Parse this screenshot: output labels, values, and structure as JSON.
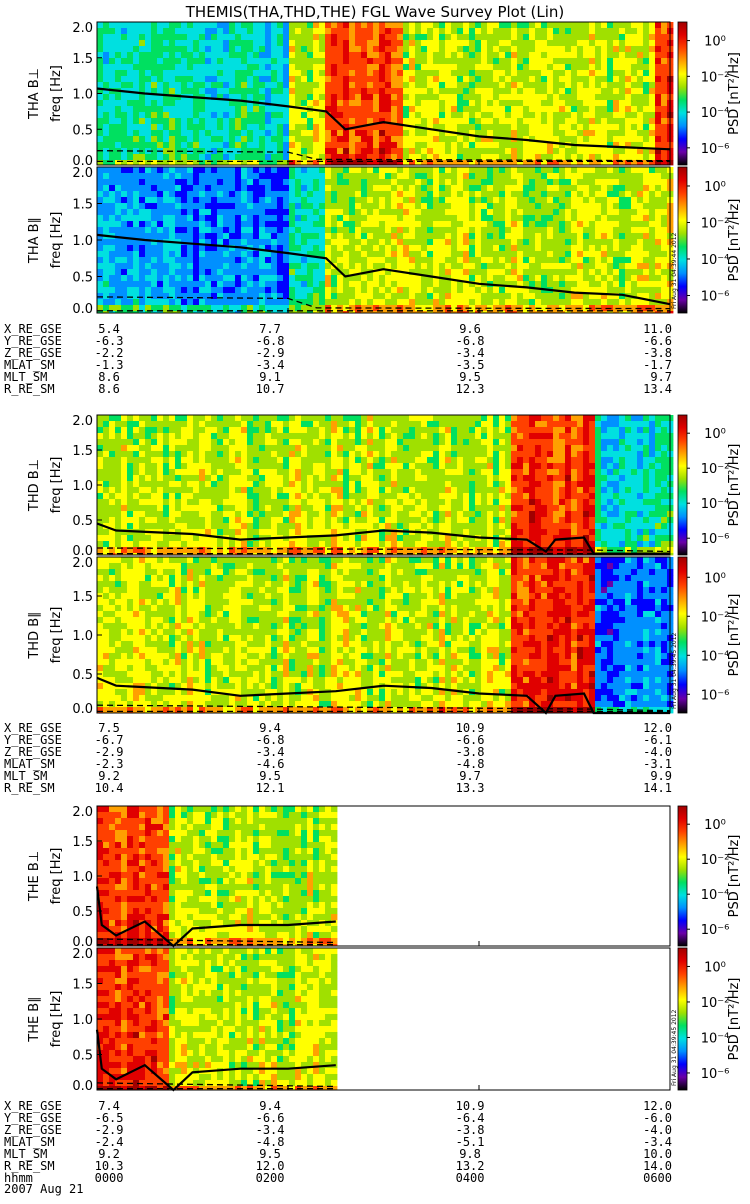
{
  "title": "THEMIS(THA,THD,THE) FGL Wave Survey Plot (Lin)",
  "footer": {
    "label_hhmm": "hhmm",
    "date": "2007 Aug 21"
  },
  "colorbar": {
    "label": "PSD [nT²/Hz]",
    "ticks": [
      "10⁰",
      "10⁻²",
      "10⁻⁴",
      "10⁻⁶"
    ],
    "colors": [
      "#000000",
      "#6a00a8",
      "#0000ff",
      "#0090ff",
      "#00e0e0",
      "#00e060",
      "#a0e000",
      "#ffff00",
      "#ffa000",
      "#ff4000",
      "#e00000",
      "#a00000"
    ]
  },
  "panels": [
    {
      "label": "THA B⊥",
      "ylabel": "freq [Hz]",
      "stamp": "",
      "yticks": [
        "2.0",
        "1.5",
        "1.0",
        "0.5",
        "0.0"
      ]
    },
    {
      "label": "THA B∥",
      "ylabel": "freq [Hz]",
      "stamp": "Fri Aug 31 04:39:44 2012",
      "yticks": [
        "2.0",
        "1.5",
        "1.0",
        "0.5",
        "0.0"
      ]
    },
    {
      "label": "THD B⊥",
      "ylabel": "freq [Hz]",
      "stamp": "",
      "yticks": [
        "2.0",
        "1.5",
        "1.0",
        "0.5",
        "0.0"
      ]
    },
    {
      "label": "THD B∥",
      "ylabel": "freq [Hz]",
      "stamp": "Fri Aug 31 04:39:45 2012",
      "yticks": [
        "2.0",
        "1.5",
        "1.0",
        "0.5",
        "0.0"
      ]
    },
    {
      "label": "THE B⊥",
      "ylabel": "freq [Hz]",
      "stamp": "",
      "yticks": [
        "2.0",
        "1.5",
        "1.0",
        "0.5",
        "0.0"
      ]
    },
    {
      "label": "THE B∥",
      "ylabel": "freq [Hz]",
      "stamp": "Fri Aug 31 04:39:45 2012",
      "yticks": [
        "2.0",
        "1.5",
        "1.0",
        "0.5",
        "0.0"
      ]
    }
  ],
  "ephemeris": [
    {
      "probe": "THA",
      "rows": [
        {
          "name": "X_RE_GSE",
          "values": [
            "5.4",
            "7.7",
            "9.6",
            "11.0"
          ]
        },
        {
          "name": "Y_RE_GSE",
          "values": [
            "-6.3",
            "-6.8",
            "-6.8",
            "-6.6"
          ]
        },
        {
          "name": "Z_RE_GSE",
          "values": [
            "-2.2",
            "-2.9",
            "-3.4",
            "-3.8"
          ]
        },
        {
          "name": "MLAT_SM",
          "values": [
            "-1.3",
            "-3.4",
            "-3.5",
            "-1.7"
          ]
        },
        {
          "name": "MLT_SM",
          "values": [
            "8.6",
            "9.1",
            "9.5",
            "9.7"
          ]
        },
        {
          "name": "R_RE_SM",
          "values": [
            "8.6",
            "10.7",
            "12.3",
            "13.4"
          ]
        }
      ]
    },
    {
      "probe": "THD",
      "rows": [
        {
          "name": "X_RE_GSE",
          "values": [
            "7.5",
            "9.4",
            "10.9",
            "12.0"
          ]
        },
        {
          "name": "Y_RE_GSE",
          "values": [
            "-6.7",
            "-6.8",
            "-6.6",
            "-6.1"
          ]
        },
        {
          "name": "Z_RE_GSE",
          "values": [
            "-2.9",
            "-3.4",
            "-3.8",
            "-4.0"
          ]
        },
        {
          "name": "MLAT_SM",
          "values": [
            "-2.3",
            "-4.6",
            "-4.8",
            "-3.1"
          ]
        },
        {
          "name": "MLT_SM",
          "values": [
            "9.2",
            "9.5",
            "9.7",
            "9.9"
          ]
        },
        {
          "name": "R_RE_SM",
          "values": [
            "10.4",
            "12.1",
            "13.3",
            "14.1"
          ]
        }
      ]
    },
    {
      "probe": "THE",
      "rows": [
        {
          "name": "X_RE_GSE",
          "values": [
            "7.4",
            "9.4",
            "10.9",
            "12.0"
          ]
        },
        {
          "name": "Y_RE_GSE",
          "values": [
            "-6.5",
            "-6.6",
            "-6.4",
            "-6.0"
          ]
        },
        {
          "name": "Z_RE_GSE",
          "values": [
            "-2.9",
            "-3.4",
            "-3.8",
            "-4.0"
          ]
        },
        {
          "name": "MLAT_SM",
          "values": [
            "-2.4",
            "-4.8",
            "-5.1",
            "-3.4"
          ]
        },
        {
          "name": "MLT_SM",
          "values": [
            "9.2",
            "9.5",
            "9.8",
            "10.0"
          ]
        },
        {
          "name": "R_RE_SM",
          "values": [
            "10.3",
            "12.0",
            "13.2",
            "14.0"
          ]
        },
        {
          "name": "hhmm",
          "values": [
            "0000",
            "0200",
            "0400",
            "0600"
          ]
        }
      ]
    }
  ],
  "chart_data": [
    {
      "type": "heatmap",
      "panel": "THA B⊥",
      "ylabel": "freq [Hz]",
      "ylim": [
        0,
        2.0
      ],
      "xlim": [
        0,
        6
      ],
      "coverage_hours": [
        0,
        6
      ],
      "solid_line": [
        [
          0,
          1.07
        ],
        [
          0.5,
          1.0
        ],
        [
          1,
          0.95
        ],
        [
          1.5,
          0.9
        ],
        [
          2,
          0.82
        ],
        [
          2.4,
          0.75
        ],
        [
          2.6,
          0.5
        ],
        [
          3,
          0.6
        ],
        [
          3.5,
          0.5
        ],
        [
          4,
          0.4
        ],
        [
          4.5,
          0.35
        ],
        [
          5,
          0.28
        ],
        [
          5.5,
          0.25
        ],
        [
          6,
          0.22
        ]
      ],
      "dashed_upper": [
        [
          0,
          0.2
        ],
        [
          2,
          0.18
        ],
        [
          2.3,
          0.08
        ],
        [
          6,
          0.06
        ]
      ],
      "dashed_lower": [
        [
          0,
          0.05
        ],
        [
          6,
          0.05
        ]
      ],
      "regimes": [
        [
          0,
          2.0,
          "low"
        ],
        [
          2.0,
          2.35,
          "mid"
        ],
        [
          2.35,
          3.2,
          "high"
        ],
        [
          3.2,
          5.8,
          "mid"
        ],
        [
          5.8,
          6,
          "high"
        ]
      ]
    },
    {
      "type": "heatmap",
      "panel": "THA B∥",
      "ylabel": "freq [Hz]",
      "ylim": [
        0,
        2.0
      ],
      "xlim": [
        0,
        6
      ],
      "coverage_hours": [
        0,
        6
      ],
      "solid_line": [
        [
          0,
          1.07
        ],
        [
          0.5,
          1.0
        ],
        [
          1,
          0.95
        ],
        [
          1.5,
          0.9
        ],
        [
          2,
          0.82
        ],
        [
          2.4,
          0.75
        ],
        [
          2.6,
          0.5
        ],
        [
          3,
          0.6
        ],
        [
          3.5,
          0.5
        ],
        [
          4,
          0.4
        ],
        [
          4.5,
          0.35
        ],
        [
          5,
          0.28
        ],
        [
          5.5,
          0.25
        ],
        [
          6,
          0.12
        ]
      ],
      "dashed_upper": [
        [
          0,
          0.22
        ],
        [
          2,
          0.2
        ],
        [
          2.3,
          0.07
        ],
        [
          6,
          0.06
        ]
      ],
      "dashed_lower": [
        [
          0,
          0.03
        ],
        [
          6,
          0.03
        ]
      ],
      "regimes": [
        [
          0,
          2.0,
          "lowest"
        ],
        [
          2.0,
          2.35,
          "low"
        ],
        [
          2.35,
          6,
          "mid"
        ]
      ]
    },
    {
      "type": "heatmap",
      "panel": "THD B⊥",
      "ylabel": "freq [Hz]",
      "ylim": [
        0,
        2.0
      ],
      "xlim": [
        0,
        6
      ],
      "coverage_hours": [
        0,
        6
      ],
      "solid_line": [
        [
          0,
          0.45
        ],
        [
          0.2,
          0.35
        ],
        [
          1,
          0.3
        ],
        [
          1.5,
          0.22
        ],
        [
          2,
          0.25
        ],
        [
          2.5,
          0.28
        ],
        [
          3,
          0.35
        ],
        [
          3.5,
          0.32
        ],
        [
          4,
          0.25
        ],
        [
          4.5,
          0.22
        ],
        [
          4.7,
          0.05
        ],
        [
          4.8,
          0.22
        ],
        [
          5.1,
          0.25
        ],
        [
          5.2,
          0.02
        ],
        [
          6,
          0.02
        ]
      ],
      "dashed_upper": [
        [
          0,
          0.1
        ],
        [
          5.2,
          0.07
        ],
        [
          6,
          0.05
        ]
      ],
      "dashed_lower": [
        [
          0,
          0.02
        ],
        [
          6,
          0.02
        ]
      ],
      "regimes": [
        [
          0,
          4.3,
          "mid"
        ],
        [
          4.3,
          5.2,
          "high"
        ],
        [
          5.2,
          6,
          "low"
        ]
      ]
    },
    {
      "type": "heatmap",
      "panel": "THD B∥",
      "ylabel": "freq [Hz]",
      "ylim": [
        0,
        2.0
      ],
      "xlim": [
        0,
        6
      ],
      "coverage_hours": [
        0,
        6
      ],
      "solid_line": [
        [
          0,
          0.45
        ],
        [
          0.2,
          0.35
        ],
        [
          1,
          0.3
        ],
        [
          1.5,
          0.22
        ],
        [
          2,
          0.25
        ],
        [
          2.5,
          0.28
        ],
        [
          3,
          0.35
        ],
        [
          3.5,
          0.32
        ],
        [
          4,
          0.25
        ],
        [
          4.5,
          0.22
        ],
        [
          4.7,
          0.0
        ],
        [
          4.8,
          0.22
        ],
        [
          5.1,
          0.25
        ],
        [
          5.2,
          0.0
        ],
        [
          6,
          0.0
        ]
      ],
      "dashed_upper": [
        [
          0,
          0.1
        ],
        [
          5.2,
          0.05
        ],
        [
          6,
          0.03
        ]
      ],
      "dashed_lower": [
        [
          0,
          0.02
        ],
        [
          6,
          0.02
        ]
      ],
      "regimes": [
        [
          0,
          4.3,
          "mid"
        ],
        [
          4.3,
          5.2,
          "high"
        ],
        [
          5.2,
          6,
          "lowest"
        ]
      ]
    },
    {
      "type": "heatmap",
      "panel": "THE B⊥",
      "ylabel": "freq [Hz]",
      "ylim": [
        0,
        2.0
      ],
      "xlim": [
        0,
        6
      ],
      "coverage_hours": [
        0,
        2.5
      ],
      "solid_line": [
        [
          0,
          0.85
        ],
        [
          0.05,
          0.3
        ],
        [
          0.2,
          0.15
        ],
        [
          0.5,
          0.35
        ],
        [
          0.8,
          0.0
        ],
        [
          1,
          0.25
        ],
        [
          1.5,
          0.3
        ],
        [
          2,
          0.3
        ],
        [
          2.5,
          0.35
        ]
      ],
      "dashed_upper": [
        [
          0,
          0.1
        ],
        [
          2.5,
          0.05
        ]
      ],
      "dashed_lower": [
        [
          0,
          0.02
        ],
        [
          2.5,
          0.02
        ]
      ],
      "regimes": [
        [
          0,
          0.7,
          "high"
        ],
        [
          0.7,
          2.5,
          "mid"
        ]
      ]
    },
    {
      "type": "heatmap",
      "panel": "THE B∥",
      "ylabel": "freq [Hz]",
      "ylim": [
        0,
        2.0
      ],
      "xlim": [
        0,
        6
      ],
      "coverage_hours": [
        0,
        2.5
      ],
      "solid_line": [
        [
          0,
          0.85
        ],
        [
          0.05,
          0.3
        ],
        [
          0.2,
          0.15
        ],
        [
          0.5,
          0.35
        ],
        [
          0.8,
          0.0
        ],
        [
          1,
          0.25
        ],
        [
          1.5,
          0.3
        ],
        [
          2,
          0.3
        ],
        [
          2.5,
          0.35
        ]
      ],
      "dashed_upper": [
        [
          0,
          0.1
        ],
        [
          2.5,
          0.05
        ]
      ],
      "dashed_lower": [
        [
          0,
          0.02
        ],
        [
          2.5,
          0.02
        ]
      ],
      "regimes": [
        [
          0,
          0.7,
          "high"
        ],
        [
          0.7,
          2.5,
          "mid"
        ]
      ]
    }
  ]
}
